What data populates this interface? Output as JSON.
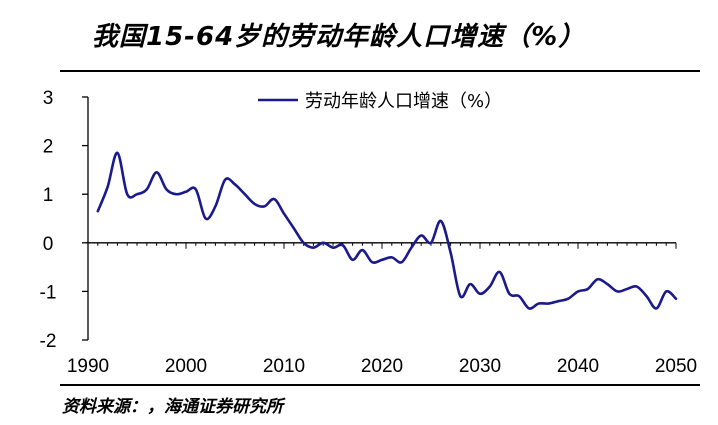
{
  "header": {
    "title": "我国15-64岁的劳动年龄人口增速（%）"
  },
  "footer": {
    "source": "资料来源：，海通证券研究所"
  },
  "chart_data": {
    "type": "line",
    "title": "我国15-64岁的劳动年龄人口增速（%）",
    "xlabel": "",
    "ylabel": "",
    "xlim": [
      1990,
      2050
    ],
    "ylim": [
      -2,
      3
    ],
    "x_ticks": [
      1990,
      2000,
      2010,
      2020,
      2030,
      2040,
      2050
    ],
    "y_ticks": [
      3,
      2,
      1,
      0,
      -1,
      -2
    ],
    "grid": false,
    "legend_position": "top-center",
    "line_color": "#1a1a8c",
    "series": [
      {
        "name": "劳动年龄人口增速（%）",
        "x": [
          1991,
          1992,
          1993,
          1994,
          1995,
          1996,
          1997,
          1998,
          1999,
          2000,
          2001,
          2002,
          2003,
          2004,
          2005,
          2006,
          2007,
          2008,
          2009,
          2010,
          2011,
          2012,
          2013,
          2014,
          2015,
          2016,
          2017,
          2018,
          2019,
          2020,
          2021,
          2022,
          2023,
          2024,
          2025,
          2026,
          2027,
          2028,
          2029,
          2030,
          2031,
          2032,
          2033,
          2034,
          2035,
          2036,
          2037,
          2038,
          2039,
          2040,
          2041,
          2042,
          2043,
          2044,
          2045,
          2046,
          2047,
          2048,
          2049,
          2050
        ],
        "values": [
          0.65,
          1.15,
          1.85,
          1.0,
          1.0,
          1.1,
          1.45,
          1.1,
          1.0,
          1.05,
          1.1,
          0.5,
          0.75,
          1.3,
          1.2,
          1.0,
          0.8,
          0.75,
          0.9,
          0.6,
          0.3,
          0.0,
          -0.1,
          0.0,
          -0.1,
          -0.05,
          -0.35,
          -0.15,
          -0.4,
          -0.35,
          -0.3,
          -0.4,
          -0.1,
          0.15,
          0.0,
          0.45,
          -0.2,
          -1.1,
          -0.85,
          -1.05,
          -0.9,
          -0.6,
          -1.05,
          -1.1,
          -1.35,
          -1.25,
          -1.25,
          -1.2,
          -1.15,
          -1.0,
          -0.95,
          -0.75,
          -0.85,
          -1.0,
          -0.95,
          -0.9,
          -1.1,
          -1.35,
          -1.0,
          -1.15
        ]
      }
    ]
  }
}
